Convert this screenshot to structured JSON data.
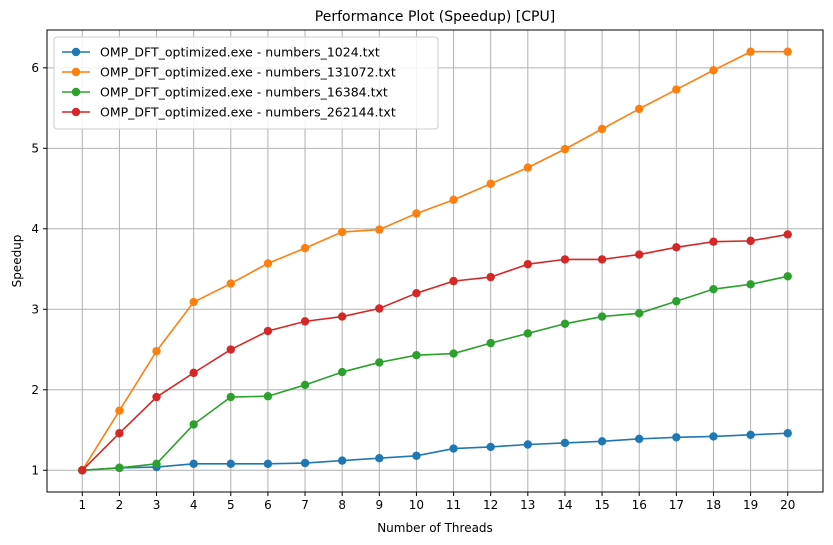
{
  "chart_data": {
    "type": "line",
    "title": "Performance Plot (Speedup) [CPU]",
    "xlabel": "Number of Threads",
    "ylabel": "Speedup",
    "x": [
      1,
      2,
      3,
      4,
      5,
      6,
      7,
      8,
      9,
      10,
      11,
      12,
      13,
      14,
      15,
      16,
      17,
      18,
      19,
      20
    ],
    "xlim": [
      0.05,
      20.95
    ],
    "ylim": [
      0.73,
      6.47
    ],
    "yticks": [
      1,
      2,
      3,
      4,
      5,
      6
    ],
    "grid": true,
    "legend_position": "top-left",
    "series": [
      {
        "name": "OMP_DFT_optimized.exe - numbers_1024.txt",
        "color": "#1f77b4",
        "values": [
          1.0,
          1.03,
          1.04,
          1.08,
          1.08,
          1.08,
          1.09,
          1.12,
          1.15,
          1.18,
          1.27,
          1.29,
          1.32,
          1.34,
          1.36,
          1.39,
          1.41,
          1.42,
          1.44,
          1.46
        ]
      },
      {
        "name": "OMP_DFT_optimized.exe - numbers_131072.txt",
        "color": "#ff7f0e",
        "values": [
          1.0,
          1.74,
          2.48,
          3.09,
          3.32,
          3.57,
          3.76,
          3.96,
          3.99,
          4.19,
          4.36,
          4.56,
          4.76,
          4.99,
          5.24,
          5.49,
          5.73,
          5.97,
          6.2,
          6.2
        ]
      },
      {
        "name": "OMP_DFT_optimized.exe - numbers_16384.txt",
        "color": "#2ca02c",
        "values": [
          1.0,
          1.03,
          1.08,
          1.57,
          1.91,
          1.92,
          2.06,
          2.22,
          2.34,
          2.43,
          2.45,
          2.58,
          2.7,
          2.82,
          2.91,
          2.95,
          3.1,
          3.25,
          3.31,
          3.41
        ]
      },
      {
        "name": "OMP_DFT_optimized.exe - numbers_262144.txt",
        "color": "#d62728",
        "values": [
          1.0,
          1.46,
          1.91,
          2.21,
          2.5,
          2.73,
          2.85,
          2.91,
          3.01,
          3.2,
          3.35,
          3.4,
          3.56,
          3.62,
          3.62,
          3.68,
          3.77,
          3.84,
          3.85,
          3.93
        ]
      }
    ]
  }
}
